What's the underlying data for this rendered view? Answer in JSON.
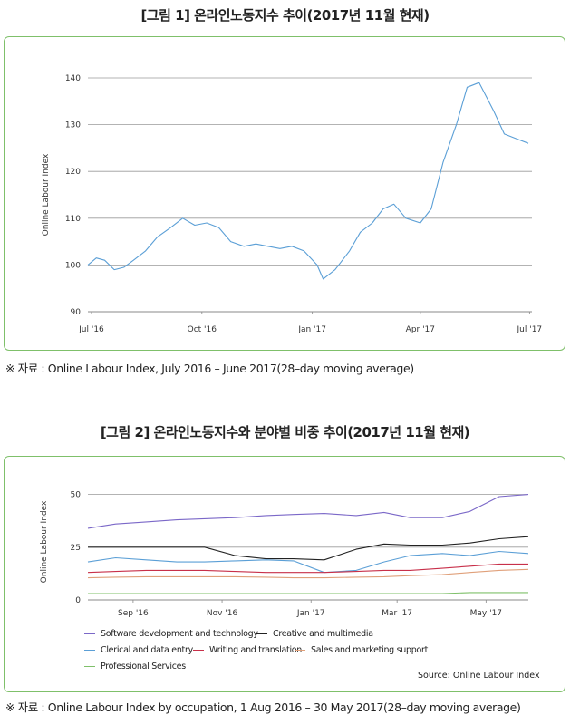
{
  "fig1": {
    "title": "[그림 1] 온라인노동지수 추이(2017년 11월 현재)",
    "note": "※ 자료 : Online Labour Index, July 2016 – June 2017(28–day moving average)"
  },
  "fig2": {
    "title": "[그림 2] 온라인노동지수와 분야별 비중 추이(2017년 11월 현재)",
    "note": "※ 자료 : Online Labour Index by occupation, 1 Aug 2016 – 30 May 2017(28–day moving average)",
    "source": "Source: Online Labour Index"
  },
  "chart_data": [
    {
      "type": "line",
      "ylabel": "Online Labour Index",
      "ylim": [
        90,
        140
      ],
      "yticks": [
        "90",
        "100",
        "110",
        "120",
        "130",
        "140"
      ],
      "xticks": [
        "Jul '16",
        "Oct '16",
        "Jan '17",
        "Apr '17",
        "Jul '17"
      ],
      "xtick_dates": [
        "2016-07-01",
        "2016-10-01",
        "2017-01-01",
        "2017-04-01",
        "2017-07-01"
      ],
      "xlim": [
        "2016-06-28",
        "2017-07-03"
      ],
      "grid": "horizontal",
      "series": [
        {
          "color": "#5b9fd6",
          "x": [
            "2016-06-28",
            "2016-07-05",
            "2016-07-12",
            "2016-07-20",
            "2016-07-28",
            "2016-08-05",
            "2016-08-15",
            "2016-08-25",
            "2016-09-05",
            "2016-09-15",
            "2016-09-25",
            "2016-10-05",
            "2016-10-15",
            "2016-10-25",
            "2016-11-05",
            "2016-11-15",
            "2016-11-25",
            "2016-12-05",
            "2016-12-15",
            "2016-12-25",
            "2017-01-05",
            "2017-01-10",
            "2017-01-20",
            "2017-02-01",
            "2017-02-10",
            "2017-02-20",
            "2017-03-01",
            "2017-03-10",
            "2017-03-20",
            "2017-04-01",
            "2017-04-10",
            "2017-04-20",
            "2017-05-01",
            "2017-05-10",
            "2017-05-20",
            "2017-06-01",
            "2017-06-10",
            "2017-06-20",
            "2017-06-30"
          ],
          "y": [
            100,
            101.5,
            101,
            99,
            99.5,
            101,
            103,
            106,
            108,
            110,
            108.5,
            109,
            108,
            105,
            104,
            104.5,
            104,
            103.5,
            104,
            103,
            100,
            97,
            99,
            103,
            107,
            109,
            112,
            113,
            110,
            109,
            112,
            122,
            130,
            138,
            139,
            133,
            128,
            127,
            126
          ]
        }
      ]
    },
    {
      "type": "line",
      "ylabel": "Online Labour Index",
      "ylim": [
        0,
        55
      ],
      "yticks": [
        "0",
        "25",
        "50"
      ],
      "xticks": [
        "Sep '16",
        "Nov '16",
        "Jan '17",
        "Mar '17",
        "May '17"
      ],
      "xtick_dates": [
        "2016-09-01",
        "2016-11-01",
        "2017-01-01",
        "2017-03-01",
        "2017-05-01"
      ],
      "xlim": [
        "2016-08-01",
        "2017-05-30"
      ],
      "grid": "horizontal",
      "legend": "bottom",
      "x": [
        "2016-08-01",
        "2016-08-20",
        "2016-09-10",
        "2016-10-01",
        "2016-10-20",
        "2016-11-10",
        "2016-12-01",
        "2016-12-20",
        "2017-01-10",
        "2017-02-01",
        "2017-02-20",
        "2017-03-10",
        "2017-04-01",
        "2017-04-20",
        "2017-05-10",
        "2017-05-30"
      ],
      "series": [
        {
          "name": "Software development and technology",
          "color": "#7b68c8",
          "values": [
            34,
            36,
            37,
            38,
            38.5,
            39,
            40,
            40.5,
            41,
            40,
            41.5,
            39,
            39,
            42,
            49,
            50
          ]
        },
        {
          "name": "Creative and multimedia",
          "color": "#222222",
          "values": [
            25,
            25,
            25,
            25,
            25,
            21,
            19.5,
            19.5,
            19,
            24,
            26.5,
            26,
            26,
            27,
            29,
            30
          ]
        },
        {
          "name": "Clerical and data entry",
          "color": "#5b9fd6",
          "values": [
            18,
            20,
            19,
            18,
            18,
            18.5,
            19,
            18.5,
            13,
            14,
            18,
            21,
            22,
            21,
            23,
            22
          ]
        },
        {
          "name": "Writing and translation",
          "color": "#c8304a",
          "values": [
            13,
            13.5,
            14,
            14,
            14,
            13.5,
            13,
            13,
            13,
            13.5,
            14,
            14,
            15,
            16,
            17,
            17
          ]
        },
        {
          "name": "Sales and marketing support",
          "color": "#e0a07a",
          "values": [
            10.5,
            10.8,
            11,
            11,
            11,
            11,
            10.8,
            10.5,
            10.5,
            10.8,
            11,
            11.5,
            12,
            13,
            14,
            14.5
          ]
        },
        {
          "name": "Professional Services",
          "color": "#7fc06a",
          "values": [
            3,
            3,
            3,
            3,
            3,
            3,
            3,
            3,
            3,
            3,
            3,
            3,
            3,
            3.5,
            3.5,
            3.5
          ]
        }
      ]
    }
  ]
}
